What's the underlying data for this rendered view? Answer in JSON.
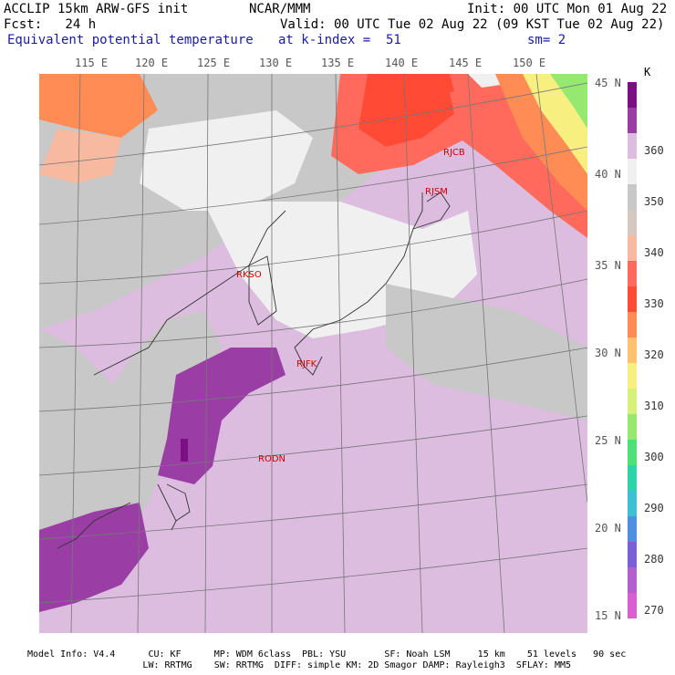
{
  "header": {
    "line1_left": "ACCLIP 15km ARW-GFS init",
    "line1_mid": "NCAR/MMM",
    "line1_right": "Init: 00 UTC Mon 01 Aug 22",
    "line2_left": "Fcst:   24 h",
    "line2_right": "Valid: 00 UTC Tue 02 Aug 22 (09 KST Tue 02 Aug 22)",
    "line3_left": "Equivalent potential temperature",
    "line3_mid": "at k-index =  51",
    "line3_right": "sm= 2"
  },
  "lon_labels": [
    "115 E",
    "120 E",
    "125 E",
    "130 E",
    "135 E",
    "140 E",
    "145 E",
    "150 E"
  ],
  "lat_labels": [
    "45 N",
    "40 N",
    "35 N",
    "30 N",
    "25 N",
    "20 N",
    "15 N"
  ],
  "stations": [
    {
      "id": "RJCB"
    },
    {
      "id": "RJSM"
    },
    {
      "id": "RKSO"
    },
    {
      "id": "RJFK"
    },
    {
      "id": "RODN"
    }
  ],
  "colorbar": {
    "unit": "K",
    "labels": [
      "360",
      "350",
      "340",
      "330",
      "320",
      "310",
      "300",
      "290",
      "280",
      "270"
    ],
    "colors": [
      "#7b0f83",
      "#9a3ea5",
      "#dcbcdf",
      "#f0f0f0",
      "#c8c8c8",
      "#d4c8c0",
      "#f7b9a0",
      "#ff6a5c",
      "#ff4a35",
      "#ff8c55",
      "#ffc070",
      "#f7ef80",
      "#d6f07a",
      "#95e870",
      "#4fe07a",
      "#2cd4a8",
      "#3ec0d4",
      "#4f8fe0",
      "#7a5fd6",
      "#b35fd0",
      "#d85fd2"
    ]
  },
  "footer": {
    "line1": "Model Info: V4.4      CU: KF      MP: WDM 6class  PBL: YSU       SF: Noah LSM     15 km    51 levels   90 sec",
    "line2": "                     LW: RRTMG    SW: RRTMG  DIFF: simple KM: 2D Smagor DAMP: Rayleigh3  SFLAY: MM5"
  }
}
